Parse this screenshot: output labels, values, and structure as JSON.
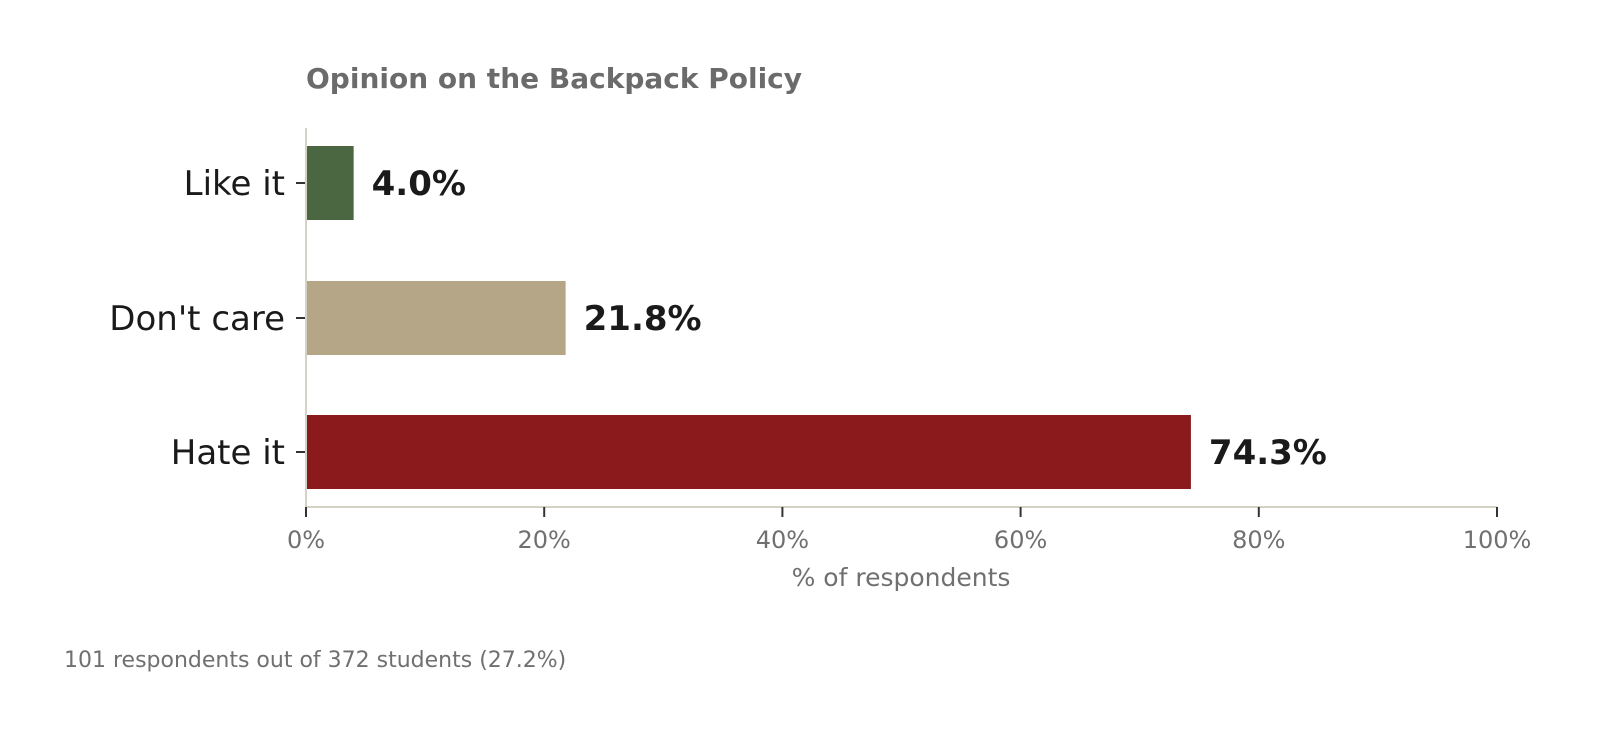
{
  "chart_data": {
    "type": "bar",
    "orientation": "horizontal",
    "title": "Opinion on the Backpack Policy",
    "categories": [
      "Like it",
      "Don't care",
      "Hate it"
    ],
    "values": [
      4.0,
      21.8,
      74.3
    ],
    "value_labels": [
      "4.0%",
      "21.8%",
      "74.3%"
    ],
    "colors": [
      "#4a6741",
      "#b5a688",
      "#8b1a1c"
    ],
    "xlabel": "% of respondents",
    "ylabel": "",
    "xlim": [
      0,
      100
    ],
    "xticks": [
      0,
      20,
      40,
      60,
      80,
      100
    ],
    "xtick_labels": [
      "0%",
      "20%",
      "40%",
      "60%",
      "80%",
      "100%"
    ],
    "grid": false,
    "axis_color": "#d4d2c4",
    "footnote": "101 respondents out of 372 students (27.2%)"
  }
}
